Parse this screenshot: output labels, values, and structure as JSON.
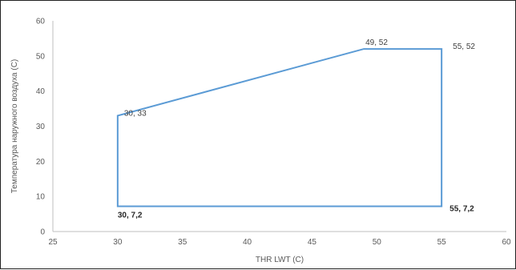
{
  "chart_data": {
    "type": "line",
    "title": "",
    "xlabel": "THR LWT (C)",
    "ylabel": "Температура наружного воздуха (C)",
    "xlim": [
      25,
      60
    ],
    "ylim": [
      0,
      60
    ],
    "x_ticks": [
      "25",
      "30",
      "35",
      "40",
      "45",
      "50",
      "55",
      "60"
    ],
    "y_ticks": [
      "0",
      "10",
      "20",
      "30",
      "40",
      "50",
      "60"
    ],
    "grid": false,
    "legend": "none",
    "series": [
      {
        "color": "#5b9bd5",
        "closed": true,
        "points": [
          {
            "x": 30,
            "y": 7.2,
            "label": "30, 7,2",
            "bold": true
          },
          {
            "x": 30,
            "y": 33,
            "label": "30, 33",
            "bold": false
          },
          {
            "x": 49,
            "y": 52,
            "label": "49, 52",
            "bold": false
          },
          {
            "x": 55,
            "y": 52,
            "label": "55, 52",
            "bold": false
          },
          {
            "x": 55,
            "y": 7.2,
            "label": "55, 7,2",
            "bold": true
          }
        ]
      }
    ]
  }
}
